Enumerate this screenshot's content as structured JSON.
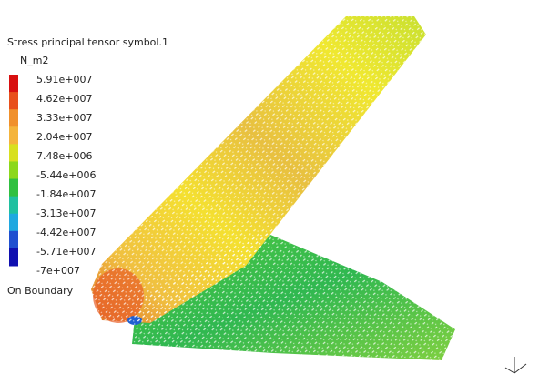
{
  "legend": {
    "title": "Stress principal tensor symbol.1",
    "unit": "N_m2",
    "labels": [
      "5.91e+007",
      "4.62e+007",
      "3.33e+007",
      "2.04e+007",
      "7.48e+006",
      "-5.44e+006",
      "-1.84e+007",
      "-3.13e+007",
      "-4.42e+007",
      "-5.71e+007",
      "-7e+007"
    ],
    "colors": [
      "#d81010",
      "#e8501c",
      "#f0902c",
      "#f4b43c",
      "#d8e020",
      "#8cd81c",
      "#30c040",
      "#20c0a0",
      "#20a8e0",
      "#2050d0",
      "#1010b0"
    ],
    "footer": "On Boundary"
  }
}
